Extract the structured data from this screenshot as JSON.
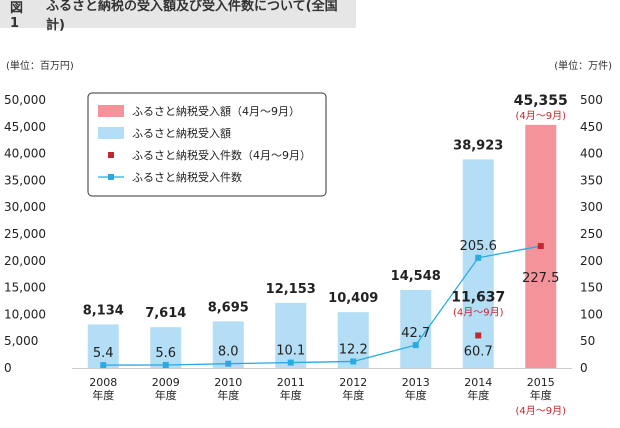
{
  "figure": {
    "label": "図1",
    "title": "ふるさと納税の受入額及び受入件数について(全国計)"
  },
  "units": {
    "left": "(単位：百万円)",
    "right": "(単位：万件)"
  },
  "legend": [
    {
      "label": "ふるさと納税受入額（4月〜9月）",
      "color": "#f5939b",
      "kind": "bar"
    },
    {
      "label": "ふるさと納税受入額",
      "color": "#b3def5",
      "kind": "bar"
    },
    {
      "label": "ふるさと納税受入件数（4月〜9月）",
      "color": "#c0282f",
      "kind": "marker"
    },
    {
      "label": "ふるさと納税受入件数",
      "color": "#29abe2",
      "kind": "line"
    }
  ],
  "chart_data": {
    "type": "bar",
    "categories": [
      "2008\n年度",
      "2009\n年度",
      "2010\n年度",
      "2011\n年度",
      "2012\n年度",
      "2013\n年度",
      "2014\n年度",
      "2015\n年度"
    ],
    "category_note_2015": "(4月〜9月)",
    "ylim_left": [
      0,
      50000
    ],
    "yticks_left": [
      "0",
      "5,000",
      "10,000",
      "15,000",
      "20,000",
      "25,000",
      "30,000",
      "35,000",
      "40,000",
      "45,000",
      "50,000"
    ],
    "ylim_right": [
      0,
      500
    ],
    "yticks_right": [
      "0",
      "50",
      "100",
      "150",
      "200",
      "250",
      "300",
      "350",
      "400",
      "450",
      "500"
    ],
    "series": [
      {
        "name": "ふるさと納税受入額",
        "axis": "left",
        "type": "bar",
        "values": [
          8134,
          7614,
          8695,
          12153,
          10409,
          14548,
          38923,
          null
        ],
        "labels": [
          "8,134",
          "7,614",
          "8,695",
          "12,153",
          "10,409",
          "14,548",
          "38,923",
          ""
        ]
      },
      {
        "name": "ふるさと納税受入額（4月〜9月）",
        "axis": "left",
        "type": "bar",
        "values": [
          null,
          null,
          null,
          null,
          null,
          null,
          11637,
          45355
        ],
        "labels": [
          "",
          "",
          "",
          "",
          "",
          "",
          "11,637",
          "45,355"
        ],
        "sublabels": [
          "",
          "",
          "",
          "",
          "",
          "",
          "(4月〜9月)",
          "(4月〜9月)"
        ]
      },
      {
        "name": "ふるさと納税受入件数",
        "axis": "right",
        "type": "line",
        "values": [
          5.4,
          5.6,
          8.0,
          10.1,
          12.2,
          42.7,
          205.6,
          227.5
        ],
        "labels": [
          "5.4",
          "5.6",
          "8.0",
          "10.1",
          "12.2",
          "42.7",
          "205.6",
          "227.5"
        ]
      },
      {
        "name": "ふるさと納税受入件数（4月〜9月）",
        "axis": "right",
        "type": "marker",
        "values": [
          null,
          null,
          null,
          null,
          null,
          null,
          60.7,
          227.5
        ],
        "labels": [
          "",
          "",
          "",
          "",
          "",
          "",
          "60.7",
          ""
        ]
      }
    ],
    "colors": {
      "bar": "#b3def5",
      "bar_partial": "#f5939b",
      "line": "#29abe2",
      "marker_partial": "#c0282f",
      "label_red": "#c0282f"
    }
  }
}
